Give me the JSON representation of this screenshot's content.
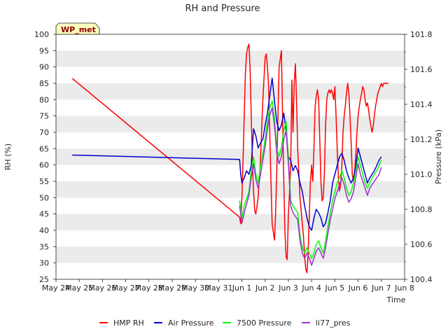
{
  "chart_data": {
    "type": "line",
    "title": "RH and Pressure",
    "xlabel": "Time",
    "ylabel": "RH (%)",
    "y2label": "Pressure (kPa)",
    "station_label": "WP_met",
    "x_ticks": [
      "May 24",
      "May 25",
      "May 26",
      "May 27",
      "May 28",
      "May 29",
      "May 30",
      "May 31",
      "Jun 1",
      "Jun 2",
      "Jun 3",
      "Jun 4",
      "Jun 5",
      "Jun 6",
      "Jun 7",
      "Jun 8"
    ],
    "xlim": [
      0,
      15
    ],
    "ylim": [
      25,
      100
    ],
    "y_ticks": [
      25,
      30,
      35,
      40,
      45,
      50,
      55,
      60,
      65,
      70,
      75,
      80,
      85,
      90,
      95,
      100
    ],
    "y2lim": [
      100.4,
      101.8
    ],
    "y2_ticks": [
      "100.4",
      "100.6",
      "100.8",
      "101.0",
      "101.2",
      "101.4",
      "101.6",
      "101.8"
    ],
    "grid": "horizontal bands",
    "legend_position": "bottom",
    "series": [
      {
        "name": "HMP RH",
        "axis": "left",
        "color": "#ff0000",
        "x": [
          0.7,
          7.9,
          7.95,
          8.0,
          8.05,
          8.1,
          8.15,
          8.2,
          8.25,
          8.3,
          8.35,
          8.4,
          8.45,
          8.5,
          8.55,
          8.6,
          8.7,
          8.8,
          8.9,
          9.0,
          9.05,
          9.1,
          9.15,
          9.2,
          9.25,
          9.3,
          9.4,
          9.45,
          9.5,
          9.55,
          9.6,
          9.7,
          9.8,
          9.85,
          9.9,
          9.95,
          10.0,
          10.05,
          10.1,
          10.15,
          10.2,
          10.25,
          10.3,
          10.35,
          10.4,
          10.5,
          10.6,
          10.65,
          10.7,
          10.75,
          10.8,
          10.85,
          10.9,
          10.95,
          11.0,
          11.05,
          11.1,
          11.15,
          11.2,
          11.25,
          11.3,
          11.35,
          11.4,
          11.45,
          11.5,
          11.55,
          11.6,
          11.65,
          11.7,
          11.75,
          11.8,
          11.85,
          11.9,
          11.95,
          12.0,
          12.05,
          12.1,
          12.15,
          12.2,
          12.25,
          12.3,
          12.35,
          12.4,
          12.45,
          12.5,
          12.55,
          12.6,
          12.65,
          12.7,
          12.75,
          12.8,
          12.85,
          12.9,
          12.95,
          13.0,
          13.05,
          13.1,
          13.15,
          13.2,
          13.25,
          13.3,
          13.35,
          13.4,
          13.45,
          13.5,
          13.55,
          13.6,
          13.65,
          13.7,
          13.75,
          13.8,
          13.85,
          13.9,
          13.95,
          14.0,
          14.05,
          14.1,
          14.15,
          14.2,
          14.25,
          14.3
        ],
        "values": [
          86.5,
          44,
          42,
          50,
          62,
          75,
          88,
          94,
          96,
          97,
          90,
          75,
          62,
          52,
          46,
          45,
          50,
          62,
          80,
          93,
          94,
          90,
          84,
          70,
          55,
          42,
          37,
          45,
          58,
          75,
          90,
          95,
          55,
          40,
          32,
          31,
          45,
          52,
          60,
          86,
          70,
          85,
          91,
          80,
          65,
          50,
          42,
          38,
          32,
          28,
          27,
          33,
          45,
          55,
          60,
          55,
          65,
          78,
          81,
          83,
          80,
          68,
          55,
          49,
          50,
          58,
          72,
          80,
          82,
          83,
          82,
          83,
          82,
          80,
          84,
          75,
          65,
          56,
          52,
          54,
          60,
          70,
          75,
          78,
          82,
          85,
          82,
          75,
          67,
          57,
          55,
          58,
          63,
          70,
          75,
          78,
          80,
          82,
          84,
          83,
          80,
          78,
          79,
          77,
          74,
          72,
          70,
          72,
          75,
          78,
          80,
          82,
          83,
          84,
          85,
          84,
          85,
          85,
          85,
          85,
          85
        ]
      },
      {
        "name": "Air Pressure",
        "axis": "right",
        "color": "#0000cc",
        "x": [
          0.7,
          7.9,
          7.95,
          8.0,
          8.1,
          8.2,
          8.3,
          8.4,
          8.5,
          8.6,
          8.7,
          8.8,
          8.9,
          9.0,
          9.1,
          9.2,
          9.3,
          9.4,
          9.5,
          9.6,
          9.7,
          9.8,
          9.9,
          10.0,
          10.1,
          10.2,
          10.3,
          10.4,
          10.5,
          10.6,
          10.7,
          10.8,
          10.9,
          11.0,
          11.1,
          11.2,
          11.3,
          11.4,
          11.5,
          11.6,
          11.7,
          11.8,
          11.9,
          12.0,
          12.1,
          12.2,
          12.3,
          12.4,
          12.5,
          12.6,
          12.7,
          12.8,
          12.9,
          13.0,
          13.1,
          13.2,
          13.3,
          13.4,
          13.5,
          13.6,
          13.7,
          13.8,
          13.9,
          14.0
        ],
        "values": [
          101.11,
          101.085,
          101.0,
          100.95,
          100.98,
          101.02,
          101.0,
          101.05,
          101.26,
          101.22,
          101.15,
          101.18,
          101.2,
          101.28,
          101.35,
          101.45,
          101.55,
          101.42,
          101.3,
          101.25,
          101.28,
          101.35,
          101.25,
          101.1,
          101.08,
          101.02,
          101.05,
          101.02,
          100.95,
          100.9,
          100.82,
          100.75,
          100.7,
          100.68,
          100.75,
          100.8,
          100.78,
          100.75,
          100.7,
          100.72,
          100.78,
          100.85,
          100.95,
          101.0,
          101.05,
          101.1,
          101.12,
          101.08,
          101.02,
          100.98,
          100.95,
          100.98,
          101.05,
          101.15,
          101.1,
          101.05,
          101.0,
          100.95,
          100.98,
          101.0,
          101.02,
          101.05,
          101.08,
          101.1
        ]
      },
      {
        "name": "7500 Pressure",
        "axis": "right",
        "color": "#00ff00",
        "x": [
          7.9,
          8.0,
          8.1,
          8.2,
          8.3,
          8.4,
          8.5,
          8.6,
          8.7,
          8.8,
          8.9,
          9.0,
          9.1,
          9.2,
          9.3,
          9.4,
          9.5,
          9.6,
          9.7,
          9.8,
          9.9,
          10.0,
          10.1,
          10.2,
          10.3,
          10.4,
          10.5,
          10.6,
          10.7,
          10.8,
          10.9,
          11.0,
          11.1,
          11.2,
          11.3,
          11.4,
          11.5,
          11.6,
          11.7,
          11.8,
          11.9,
          12.0,
          12.1,
          12.2,
          12.3,
          12.4,
          12.5,
          12.6,
          12.7,
          12.8,
          12.9,
          13.0,
          13.1,
          13.2,
          13.3,
          13.4,
          13.5,
          13.6,
          13.7,
          13.8,
          13.9,
          14.0
        ],
        "values": [
          100.85,
          100.75,
          100.82,
          100.86,
          100.9,
          101.02,
          101.1,
          101.0,
          100.95,
          101.05,
          101.12,
          101.2,
          101.3,
          101.38,
          101.42,
          101.32,
          101.15,
          101.1,
          101.15,
          101.25,
          101.3,
          101.1,
          100.85,
          100.82,
          100.8,
          100.78,
          100.65,
          100.58,
          100.55,
          100.58,
          100.55,
          100.52,
          100.55,
          100.6,
          100.62,
          100.58,
          100.55,
          100.62,
          100.7,
          100.78,
          100.85,
          100.9,
          100.95,
          100.98,
          101.02,
          100.98,
          100.92,
          100.88,
          100.9,
          100.95,
          101.02,
          101.1,
          101.05,
          101.0,
          100.95,
          100.92,
          100.95,
          100.98,
          101.0,
          101.02,
          101.05,
          101.08
        ]
      },
      {
        "name": "li77_pres",
        "axis": "right",
        "color": "#9932cc",
        "x": [
          7.9,
          8.0,
          8.1,
          8.2,
          8.3,
          8.4,
          8.5,
          8.6,
          8.7,
          8.8,
          8.9,
          9.0,
          9.1,
          9.2,
          9.3,
          9.4,
          9.5,
          9.6,
          9.7,
          9.8,
          9.9,
          10.0,
          10.1,
          10.2,
          10.3,
          10.4,
          10.5,
          10.6,
          10.7,
          10.8,
          10.9,
          11.0,
          11.1,
          11.2,
          11.3,
          11.4,
          11.5,
          11.6,
          11.7,
          11.8,
          11.9,
          12.0,
          12.1,
          12.2,
          12.3,
          12.4,
          12.5,
          12.6,
          12.7,
          12.8,
          12.9,
          13.0,
          13.1,
          13.2,
          13.3,
          13.4,
          13.5,
          13.6,
          13.7,
          13.8,
          13.9,
          14.0
        ],
        "values": [
          100.82,
          100.72,
          100.78,
          100.83,
          100.88,
          100.98,
          101.06,
          100.97,
          100.92,
          101.0,
          101.08,
          101.16,
          101.26,
          101.34,
          101.38,
          101.28,
          101.12,
          101.06,
          101.1,
          101.2,
          101.25,
          101.06,
          100.82,
          100.78,
          100.76,
          100.74,
          100.62,
          100.55,
          100.52,
          100.55,
          100.52,
          100.48,
          100.52,
          100.56,
          100.58,
          100.55,
          100.52,
          100.58,
          100.66,
          100.74,
          100.8,
          100.86,
          100.9,
          100.94,
          100.98,
          100.94,
          100.88,
          100.84,
          100.86,
          100.9,
          100.98,
          101.06,
          101.0,
          100.96,
          100.92,
          100.88,
          100.92,
          100.94,
          100.96,
          100.98,
          101.0,
          101.04
        ]
      }
    ]
  }
}
